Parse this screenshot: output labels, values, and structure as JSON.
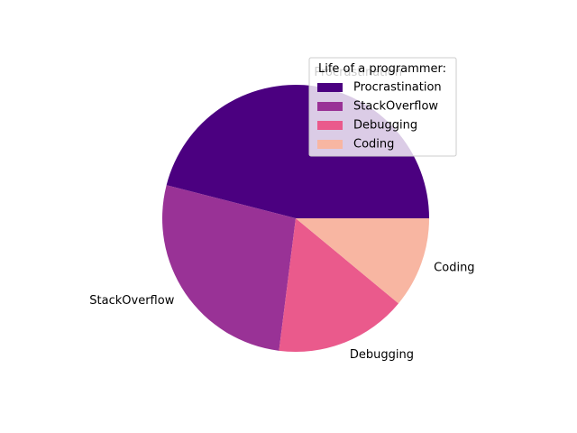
{
  "chart_data": {
    "type": "pie",
    "categories": [
      "Procrastination",
      "StackOverflow",
      "Debugging",
      "Coding"
    ],
    "values": [
      46,
      27,
      16,
      11
    ],
    "unit": "percent",
    "colors": [
      "#4b0080",
      "#993296",
      "#ea5a8c",
      "#f8b6a2"
    ],
    "start_angle_deg": 0,
    "direction": "counterclockwise",
    "legend": {
      "title": "Life of a programmer:",
      "placement": "upper-right",
      "entries": [
        "Procrastination",
        "StackOverflow",
        "Debugging",
        "Coding"
      ]
    },
    "title": "",
    "xlabel": "",
    "ylabel": ""
  }
}
